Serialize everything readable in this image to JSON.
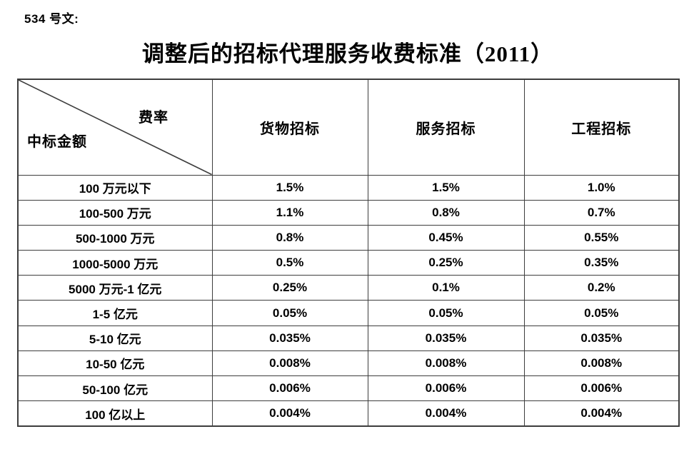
{
  "page": {
    "doc_label": "534 号文:",
    "title": "调整后的招标代理服务收费标准（2011）"
  },
  "table": {
    "corner": {
      "top_right_label": "费率",
      "bottom_left_label": "中标金额"
    },
    "columns": [
      "货物招标",
      "服务招标",
      "工程招标"
    ],
    "rows": [
      {
        "amount": "100 万元以下",
        "goods": "1.5%",
        "service": "1.5%",
        "engineering": "1.0%"
      },
      {
        "amount": "100-500 万元",
        "goods": "1.1%",
        "service": "0.8%",
        "engineering": "0.7%"
      },
      {
        "amount": "500-1000 万元",
        "goods": "0.8%",
        "service": "0.45%",
        "engineering": "0.55%"
      },
      {
        "amount": "1000-5000 万元",
        "goods": "0.5%",
        "service": "0.25%",
        "engineering": "0.35%"
      },
      {
        "amount": "5000 万元-1 亿元",
        "goods": "0.25%",
        "service": "0.1%",
        "engineering": "0.2%"
      },
      {
        "amount": "1-5 亿元",
        "goods": "0.05%",
        "service": "0.05%",
        "engineering": "0.05%"
      },
      {
        "amount": "5-10 亿元",
        "goods": "0.035%",
        "service": "0.035%",
        "engineering": "0.035%"
      },
      {
        "amount": "10-50 亿元",
        "goods": "0.008%",
        "service": "0.008%",
        "engineering": "0.008%"
      },
      {
        "amount": "50-100 亿元",
        "goods": "0.006%",
        "service": "0.006%",
        "engineering": "0.006%"
      },
      {
        "amount": "100 亿以上",
        "goods": "0.004%",
        "service": "0.004%",
        "engineering": "0.004%"
      }
    ]
  },
  "colors": {
    "text": "#000000",
    "border": "#3d3d3d",
    "background": "#ffffff"
  }
}
